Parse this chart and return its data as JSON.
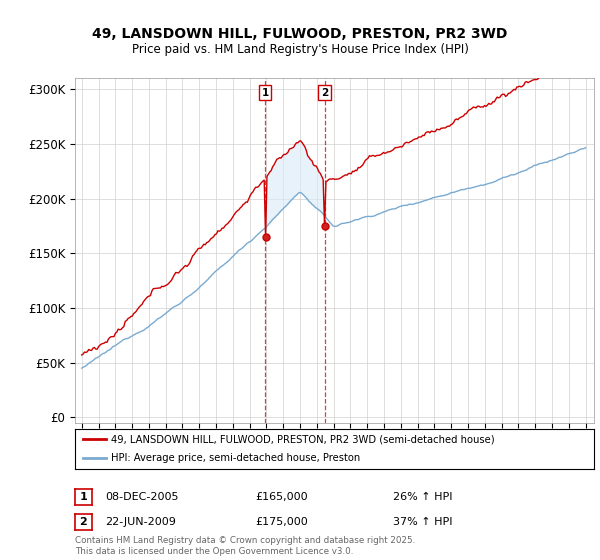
{
  "title": "49, LANSDOWN HILL, FULWOOD, PRESTON, PR2 3WD",
  "subtitle": "Price paid vs. HM Land Registry's House Price Index (HPI)",
  "ylabel_ticks": [
    "£0",
    "£50K",
    "£100K",
    "£150K",
    "£200K",
    "£250K",
    "£300K"
  ],
  "ytick_vals": [
    0,
    50000,
    100000,
    150000,
    200000,
    250000,
    300000
  ],
  "ylim": [
    -5000,
    310000
  ],
  "red_color": "#cc0000",
  "blue_color": "#7aaad0",
  "blue_fill_color": "#daeaf7",
  "legend_line1": "49, LANSDOWN HILL, FULWOOD, PRESTON, PR2 3WD (semi-detached house)",
  "legend_line2": "HPI: Average price, semi-detached house, Preston",
  "annotation1_date": "08-DEC-2005",
  "annotation1_price": "£165,000",
  "annotation1_hpi": "26% ↑ HPI",
  "annotation2_date": "22-JUN-2009",
  "annotation2_price": "£175,000",
  "annotation2_hpi": "37% ↑ HPI",
  "footer": "Contains HM Land Registry data © Crown copyright and database right 2025.\nThis data is licensed under the Open Government Licence v3.0.",
  "start_year": 1995,
  "end_year": 2025,
  "sale1_year": 2005.92,
  "sale2_year": 2009.46
}
